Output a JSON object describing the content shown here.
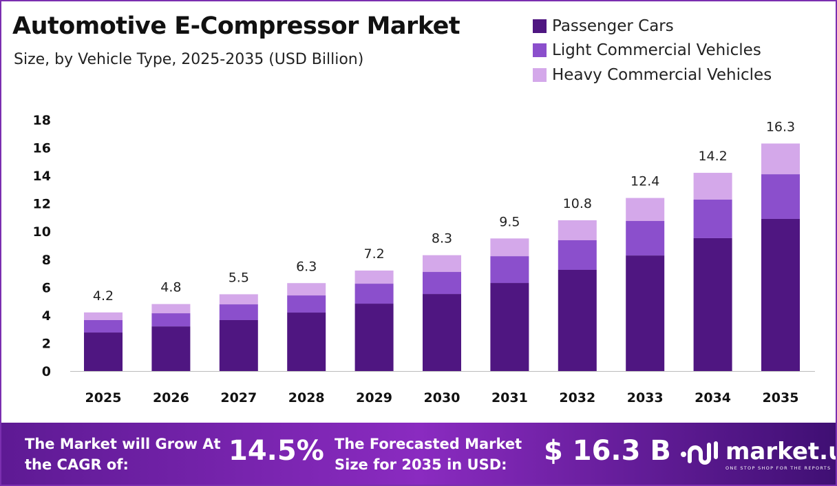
{
  "title": "Automotive E-Compressor Market",
  "subtitle": "Size, by Vehicle Type, 2025-2035 (USD Billion)",
  "chart_data": {
    "type": "bar",
    "stacked": true,
    "title": "Automotive E-Compressor Market",
    "subtitle": "Size, by Vehicle Type, 2025-2035 (USD Billion)",
    "categories": [
      "2025",
      "2026",
      "2027",
      "2028",
      "2029",
      "2030",
      "2031",
      "2032",
      "2033",
      "2034",
      "2035"
    ],
    "series": [
      {
        "name": "Passenger Cars",
        "color": "#4f1681",
        "values": [
          2.76,
          3.2,
          3.65,
          4.19,
          4.83,
          5.52,
          6.31,
          7.25,
          8.28,
          9.52,
          10.9
        ]
      },
      {
        "name": "Light Commercial Vehicles",
        "color": "#8b4fcc",
        "values": [
          0.89,
          0.94,
          1.13,
          1.23,
          1.43,
          1.58,
          1.92,
          2.12,
          2.47,
          2.76,
          3.2
        ]
      },
      {
        "name": "Heavy Commercial Vehicles",
        "color": "#d4a8ea",
        "values": [
          0.55,
          0.66,
          0.72,
          0.88,
          0.94,
          1.2,
          1.27,
          1.43,
          1.65,
          1.92,
          2.2
        ]
      }
    ],
    "totals": [
      "4.2",
      "4.8",
      "5.5",
      "6.3",
      "7.2",
      "8.3",
      "9.5",
      "10.8",
      "12.4",
      "14.2",
      "16.3"
    ],
    "ylim": [
      0,
      18
    ],
    "yticks": [
      "0",
      "2",
      "4",
      "6",
      "8",
      "10",
      "12",
      "14",
      "16",
      "18"
    ],
    "grid": false,
    "legend_position": "top-right"
  },
  "footer": {
    "cagr_label": "The Market will Grow At the CAGR of:",
    "cagr_value": "14.5%",
    "forecast_label": "The Forecasted Market Size for 2035 in USD:",
    "forecast_value": "$ 16.3 B",
    "brand": "market.us",
    "tagline": "ONE STOP SHOP FOR THE REPORTS"
  }
}
